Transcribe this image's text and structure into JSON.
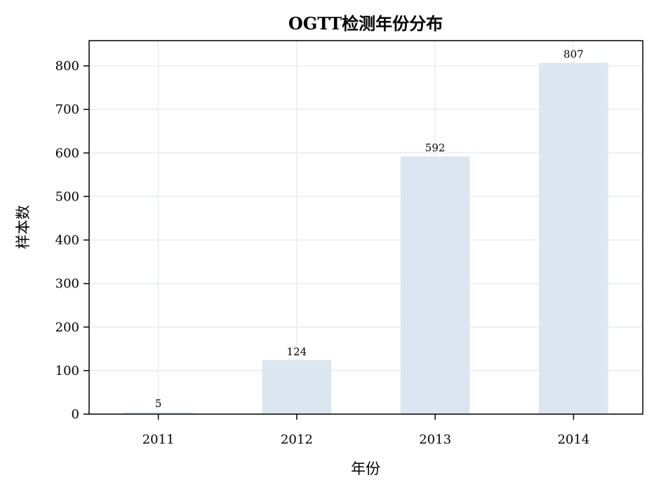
{
  "chart_data": {
    "type": "bar",
    "title": "OGTT检测年份分布",
    "xlabel": "年份",
    "ylabel": "样本数",
    "categories": [
      "2011",
      "2012",
      "2013",
      "2014"
    ],
    "values": [
      5,
      124,
      592,
      807
    ],
    "data_labels": [
      "5",
      "124",
      "592",
      "807"
    ],
    "yticks": [
      0,
      100,
      200,
      300,
      400,
      500,
      600,
      700,
      800
    ],
    "ylim": [
      0,
      858
    ],
    "grid": true,
    "bar_color": "#dce6f1",
    "grid_color": "#e9ecf1"
  }
}
